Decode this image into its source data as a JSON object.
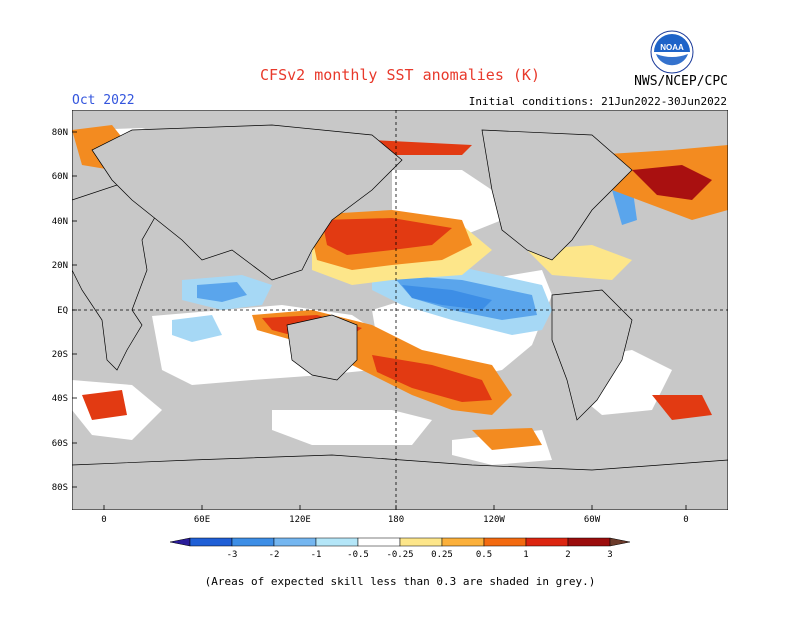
{
  "header": {
    "title": "CFSv2 monthly SST anomalies (K)",
    "valid_month": "Oct 2022",
    "initial_conditions": "Initial conditions: 21Jun2022-30Jun2022",
    "agency": "NWS/NCEP/CPC",
    "logo_text": "NOAA"
  },
  "map": {
    "lat_labels": [
      "80N",
      "60N",
      "40N",
      "20N",
      "EQ",
      "20S",
      "40S",
      "60S",
      "80S"
    ],
    "lon_labels": [
      "0",
      "60E",
      "120E",
      "180",
      "120W",
      "60W",
      "0"
    ]
  },
  "colorbar": {
    "labels": [
      "-3",
      "-2",
      "-1",
      "-0.5",
      "-0.25",
      "0.25",
      "0.5",
      "1",
      "2",
      "3"
    ],
    "colors": [
      "#2a1c9a",
      "#1f5fd6",
      "#3d8ee6",
      "#74b6f0",
      "#b4e6f8",
      "#ffffff",
      "#fde68a",
      "#fbb03b",
      "#f36a10",
      "#dc2510",
      "#9b0c0c",
      "#6b3a2a"
    ]
  },
  "palette": {
    "ocean": "#ffffff",
    "land": "#c8c8c8",
    "skill_mask": "#c8c8c8",
    "cold": "#5aa5ec",
    "cold_light": "#a6d8f5",
    "warm_light": "#fde68a",
    "warm": "#f38b20",
    "warm_strong": "#e23a12",
    "warm_extreme": "#a91010"
  },
  "footnote": "(Areas of expected skill less than 0.3 are shaded in grey.)"
}
